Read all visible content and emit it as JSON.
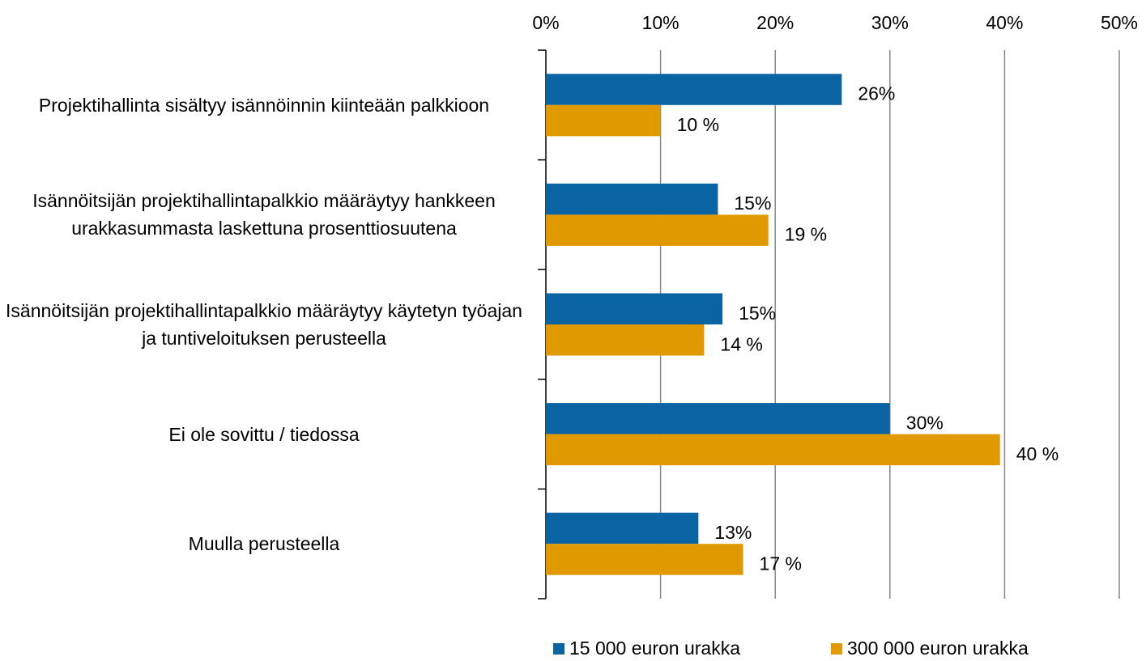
{
  "chart_data": {
    "type": "bar",
    "orientation": "horizontal",
    "categories": [
      "Projektihallinta sisältyy isännöinnin kiinteään palkkioon",
      "Isännöitsijän projektihallintapalkkio määräytyy hankkeen urakkasummasta laskettuna prosenttiosuutena",
      "Isännöitsijän projektihallintapalkkio määräytyy käytetyn työajan ja tuntiveloituksen perusteella",
      "Ei ole sovittu / tiedossa",
      "Muulla perusteella"
    ],
    "series": [
      {
        "name": "15 000 euron urakka",
        "color": "#0a64a4",
        "values": [
          25.8,
          15.0,
          15.4,
          30.0,
          13.3
        ],
        "value_labels": [
          "26%",
          "15%",
          "15%",
          "30%",
          "13%"
        ]
      },
      {
        "name": "300 000 euron urakka",
        "color": "#e09a00",
        "values": [
          10.0,
          19.4,
          13.8,
          39.6,
          17.2
        ],
        "value_labels": [
          "10 %",
          "19 %",
          "14 %",
          "40 %",
          "17 %"
        ]
      }
    ],
    "xlim": [
      0,
      50
    ],
    "xticks": [
      {
        "value": 0,
        "label": "0%"
      },
      {
        "value": 10,
        "label": "10%"
      },
      {
        "value": 20,
        "label": "20%"
      },
      {
        "value": 30,
        "label": "30%"
      },
      {
        "value": 40,
        "label": "40%"
      },
      {
        "value": 50,
        "label": "50%"
      }
    ],
    "grid": true,
    "legend": "bottom"
  }
}
